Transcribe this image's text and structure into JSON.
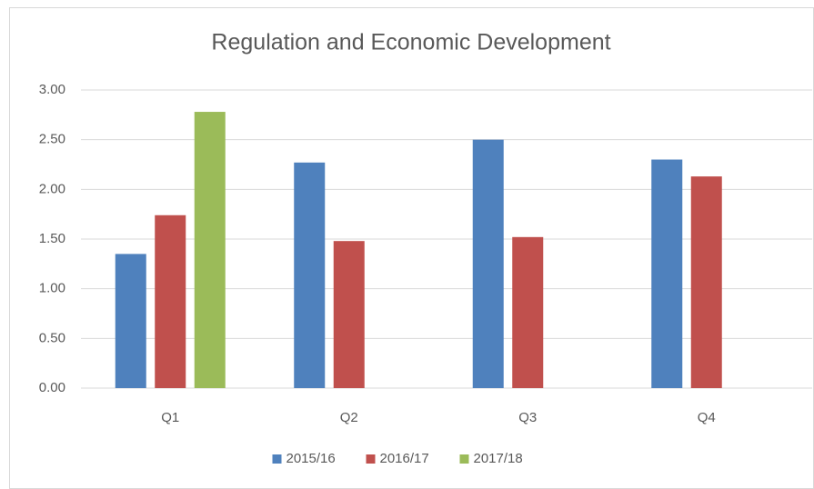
{
  "chart_data": {
    "type": "bar",
    "title": "Regulation and Economic Development",
    "categories": [
      "Q1",
      "Q2",
      "Q3",
      "Q4"
    ],
    "series": [
      {
        "name": "2015/16",
        "color": "#4f81bd",
        "values": [
          1.35,
          2.27,
          2.5,
          2.3
        ]
      },
      {
        "name": "2016/17",
        "color": "#c0504d",
        "values": [
          1.74,
          1.48,
          1.52,
          2.13
        ]
      },
      {
        "name": "2017/18",
        "color": "#9bbb59",
        "values": [
          2.78,
          null,
          null,
          null
        ]
      }
    ],
    "ylim": [
      0,
      3
    ],
    "yticks": [
      {
        "value": 0,
        "label": "0.00"
      },
      {
        "value": 0.5,
        "label": "0.50"
      },
      {
        "value": 1,
        "label": "1.00"
      },
      {
        "value": 1.5,
        "label": "1.50"
      },
      {
        "value": 2,
        "label": "2.00"
      },
      {
        "value": 2.5,
        "label": "2.50"
      },
      {
        "value": 3,
        "label": "3.00"
      }
    ],
    "grid": true,
    "legend": "bottom"
  }
}
